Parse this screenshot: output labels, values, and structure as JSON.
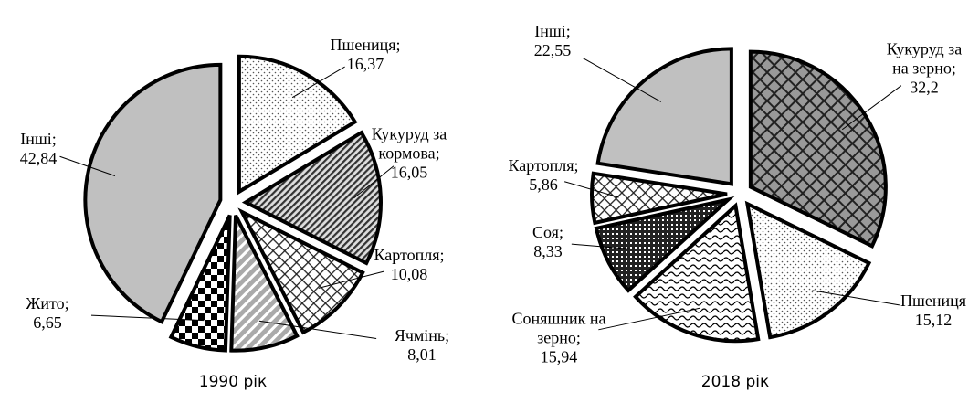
{
  "chart_data": [
    {
      "type": "pie",
      "title": "1990 рік",
      "categories": [
        "Пшениця;",
        "Кукуруд за кормова;",
        "Картопля;",
        "Ячмінь;",
        "Жито;",
        "Інші;"
      ],
      "values": [
        16.37,
        16.05,
        10.08,
        8.01,
        6.65,
        42.84
      ],
      "value_labels": [
        "16,37",
        "16,05",
        "10,08",
        "8,01",
        "6,65",
        "42,84"
      ]
    },
    {
      "type": "pie",
      "title": "2018 рік",
      "categories": [
        "Кукуруд за на зерно;",
        "Пшениця",
        "Соняшник на зерно;",
        "Соя;",
        "Картопля;",
        "Інші;"
      ],
      "values": [
        32.2,
        15.12,
        15.94,
        8.33,
        5.86,
        22.55
      ],
      "value_labels": [
        "32,2",
        "15,12",
        "15,94",
        "8,33",
        "5,86",
        "22,55"
      ]
    }
  ]
}
